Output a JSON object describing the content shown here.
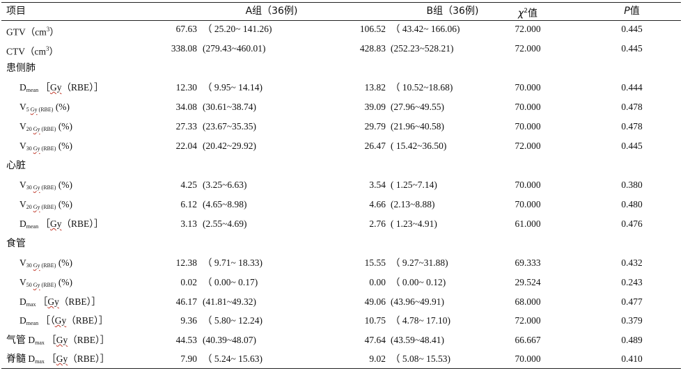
{
  "header": {
    "item": "项目",
    "group_a": "A组（36例)",
    "group_b": "B组（36例)",
    "chi": "χ",
    "chi_sup": "2",
    "chi_suffix": "值",
    "p_ital": "P",
    "p_suffix": "值"
  },
  "unit_gy": "Gy",
  "rbe": "RBE",
  "rows": [
    {
      "type": "plain",
      "label": "GTV（cm",
      "label_sup": "3",
      "label_end": "）",
      "a": "67.63",
      "ar": "（ 25.20~ 141.26)",
      "b": "106.52",
      "br": "（ 43.42~ 166.06)",
      "chi": "72.000",
      "p": "0.445"
    },
    {
      "type": "plain",
      "label": "CTV（cm",
      "label_sup": "3",
      "label_end": "）",
      "a": "338.08",
      "ar": "(279.43~460.01)",
      "b": "428.83",
      "br": "(252.23~528.21)",
      "chi": "72.000",
      "p": "0.445"
    },
    {
      "type": "cat",
      "label": "患侧肺"
    },
    {
      "type": "dose",
      "main": "D",
      "sub": "mean",
      "bracket_open": "［",
      "bracket_close": "）］",
      "a": "12.30",
      "ar": "（ 9.95~ 14.14)",
      "b": "13.82",
      "br": "（ 10.52~18.68)",
      "chi": "70.000",
      "p": "0.444"
    },
    {
      "type": "vol",
      "main": "V",
      "sub_num": "5",
      "a": "34.08",
      "ar": "(30.61~38.74)",
      "b": "39.09",
      "br": "(27.96~49.55)",
      "chi": "70.000",
      "p": "0.478"
    },
    {
      "type": "vol",
      "main": "V",
      "sub_num": "20",
      "a": "27.33",
      "ar": "(23.67~35.35)",
      "b": "29.79",
      "br": "(21.96~40.58)",
      "chi": "70.000",
      "p": "0.478"
    },
    {
      "type": "vol",
      "main": "V",
      "sub_num": "30",
      "a": "22.04",
      "ar": "(20.42~29.92)",
      "b": "26.47",
      "br": "( 15.42~36.50)",
      "chi": "72.000",
      "p": "0.445"
    },
    {
      "type": "cat",
      "label": "心脏"
    },
    {
      "type": "vol",
      "main": "V",
      "sub_num": "30",
      "a": "4.25",
      "ar": "(3.25~6.63)",
      "b": "3.54",
      "br": "( 1.25~7.14)",
      "chi": "70.000",
      "p": "0.380"
    },
    {
      "type": "vol",
      "main": "V",
      "sub_num": "20",
      "a": "6.12",
      "ar": "(4.65~8.98)",
      "b": "4.66",
      "br": "(2.13~8.88)",
      "chi": "70.000",
      "p": "0.480"
    },
    {
      "type": "dose",
      "main": "D",
      "sub": "mean",
      "bracket_open": "［",
      "bracket_close": "）］",
      "a": "3.13",
      "ar": "(2.55~4.69)",
      "b": "2.76",
      "br": "( 1.23~4.91)",
      "chi": "61.000",
      "p": "0.476"
    },
    {
      "type": "cat",
      "label": "食管"
    },
    {
      "type": "vol",
      "main": "V",
      "sub_num": "30",
      "a": "12.38",
      "ar": "（ 9.71~ 18.33)",
      "b": "15.55",
      "br": "（ 9.27~31.88)",
      "chi": "69.333",
      "p": "0.432"
    },
    {
      "type": "vol",
      "main": "V",
      "sub_num": "50",
      "a": "0.02",
      "ar": "（ 0.00~ 0.17)",
      "b": "0.00",
      "br": "（ 0.00~ 0.12)",
      "chi": "29.524",
      "p": "0.243"
    },
    {
      "type": "dose",
      "main": "D",
      "sub": "max",
      "bracket_open": "［",
      "bracket_close": "）］",
      "a": "46.17",
      "ar": "(41.81~49.32)",
      "b": "49.06",
      "br": "(43.96~49.91)",
      "chi": "68.000",
      "p": "0.477"
    },
    {
      "type": "dose",
      "main": "D",
      "sub": "mean",
      "bracket_open": "［（",
      "bracket_close": "）］",
      "a": "9.36",
      "ar": "（ 5.80~ 12.24)",
      "b": "10.75",
      "br": "（ 4.78~ 17.10)",
      "chi": "72.000",
      "p": "0.379"
    },
    {
      "type": "dose",
      "prefix": "气管",
      "main": "D",
      "sub": "max",
      "bracket_open": "［",
      "bracket_close": "）］",
      "a": "44.53",
      "ar": "(40.39~48.07)",
      "b": "47.64",
      "br": "(43.59~48.41)",
      "chi": "66.667",
      "p": "0.489"
    },
    {
      "type": "dose",
      "prefix": "脊髓",
      "main": "D",
      "sub": "max",
      "bracket_open": "［",
      "bracket_close": "）］",
      "a": "7.90",
      "ar": "（ 5.24~ 15.63)",
      "b": "9.02",
      "br": "（ 5.08~ 15.53)",
      "chi": "70.000",
      "p": "0.410"
    }
  ]
}
